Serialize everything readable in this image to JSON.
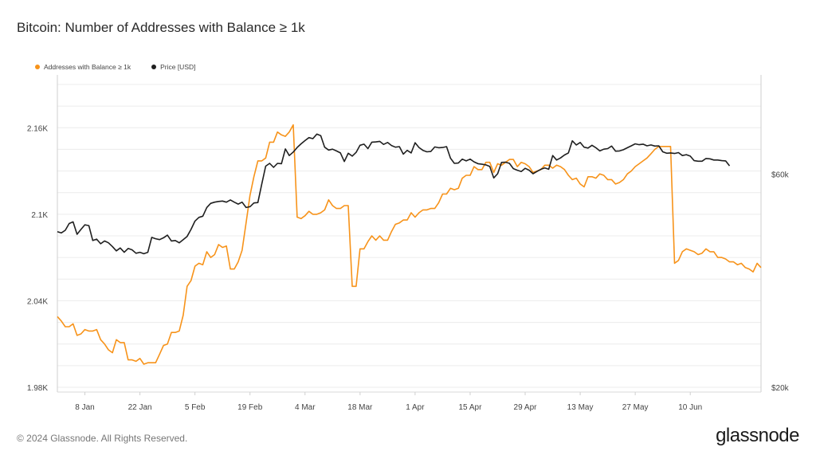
{
  "header": {
    "title": "Bitcoin: Number of Addresses with Balance ≥ 1k"
  },
  "legend": {
    "items": [
      {
        "label": "Addresses with Balance ≥ 1k",
        "color": "#f7931a"
      },
      {
        "label": "Price [USD]",
        "color": "#1f1f1f"
      }
    ]
  },
  "footer": {
    "copyright": "© 2024 Glassnode. All Rights Reserved.",
    "brand": "glassnode"
  },
  "chart_data": {
    "type": "line",
    "title": "Bitcoin: Number of Addresses with Balance ≥ 1k",
    "x_start": "2024-01-01",
    "x_tick_labels": [
      "8 Jan",
      "22 Jan",
      "5 Feb",
      "19 Feb",
      "4 Mar",
      "18 Mar",
      "1 Apr",
      "15 Apr",
      "29 Apr",
      "13 May",
      "27 May",
      "10 Jun"
    ],
    "y_left": {
      "ticks": [
        1980,
        2040,
        2100,
        2160
      ],
      "tick_labels": [
        "1.98K",
        "2.04K",
        "2.1K",
        "2.16K"
      ],
      "ylim": [
        1980,
        2190
      ]
    },
    "y_right": {
      "scale": "log",
      "ticks": [
        20000,
        60000
      ],
      "tick_labels": [
        "$20k",
        "$60k"
      ],
      "ylim": [
        20000,
        100000
      ]
    },
    "grid": true,
    "legend_position": "top-left",
    "series": [
      {
        "name": "Addresses with Balance ≥ 1k",
        "axis": "left",
        "color": "#f7931a",
        "values": [
          2029,
          2026,
          2022,
          2022,
          2024,
          2016,
          2017,
          2020,
          2019,
          2019,
          2020,
          2013,
          2010,
          2006,
          2004,
          2013,
          2011,
          2011,
          1999,
          1999,
          1998,
          2000,
          1996,
          1997,
          1997,
          1997,
          2003,
          2009,
          2010,
          2018,
          2018,
          2019,
          2030,
          2050,
          2054,
          2064,
          2066,
          2065,
          2074,
          2070,
          2072,
          2079,
          2077,
          2078,
          2062,
          2062,
          2067,
          2075,
          2094,
          2113,
          2126,
          2137,
          2137,
          2139,
          2150,
          2150,
          2157,
          2155,
          2154,
          2157,
          2162,
          2098,
          2097,
          2099,
          2102,
          2100,
          2100,
          2101,
          2103,
          2110,
          2106,
          2104,
          2104,
          2106,
          2106,
          2050,
          2050,
          2076,
          2076,
          2081,
          2085,
          2082,
          2085,
          2082,
          2082,
          2088,
          2093,
          2094,
          2096,
          2096,
          2101,
          2098,
          2101,
          2103,
          2103,
          2104,
          2104,
          2108,
          2114,
          2114,
          2118,
          2117,
          2118,
          2125,
          2127,
          2127,
          2133,
          2131,
          2131,
          2136,
          2136,
          2129,
          2135,
          2134,
          2136,
          2138,
          2138,
          2133,
          2136,
          2135,
          2133,
          2129,
          2130,
          2131,
          2134,
          2134,
          2132,
          2134,
          2133,
          2131,
          2127,
          2124,
          2125,
          2121,
          2119,
          2126,
          2126,
          2125,
          2128,
          2127,
          2124,
          2124,
          2121,
          2122,
          2124,
          2128,
          2130,
          2133,
          2135,
          2137,
          2139,
          2142,
          2145,
          2147,
          2147,
          2147,
          2147,
          2066,
          2068,
          2074,
          2076,
          2075,
          2074,
          2072,
          2073,
          2076,
          2074,
          2074,
          2070,
          2070,
          2069,
          2067,
          2067,
          2065,
          2066,
          2063,
          2062,
          2060,
          2066,
          2063
        ]
      },
      {
        "name": "Price [USD]",
        "axis": "right",
        "color": "#1f1f1f",
        "values": [
          44600,
          44300,
          44900,
          46500,
          46900,
          44000,
          45100,
          46200,
          46000,
          42600,
          42900,
          41900,
          42500,
          42100,
          41300,
          40400,
          41000,
          40100,
          40900,
          40600,
          39900,
          40100,
          39800,
          40100,
          43300,
          43000,
          42800,
          43200,
          43800,
          42500,
          42600,
          42100,
          42800,
          43500,
          45100,
          47100,
          48000,
          48300,
          50500,
          51600,
          51900,
          52100,
          52200,
          51900,
          52500,
          51900,
          51400,
          51900,
          50500,
          50700,
          51700,
          51800,
          57000,
          62500,
          63400,
          62100,
          63400,
          63300,
          68300,
          66000,
          67200,
          68800,
          70100,
          71300,
          72400,
          72000,
          73700,
          73100,
          68900,
          67900,
          68200,
          67600,
          66900,
          64000,
          66800,
          65800,
          67100,
          69600,
          70000,
          68400,
          70700,
          70800,
          71000,
          69900,
          70600,
          69500,
          68900,
          69100,
          66500,
          67800,
          66900,
          70500,
          68800,
          67800,
          67300,
          67400,
          69000,
          68700,
          68800,
          69100,
          65100,
          63400,
          63500,
          64800,
          64200,
          64800,
          63900,
          63300,
          63100,
          62900,
          62400,
          58800,
          60100,
          63700,
          63800,
          63400,
          61700,
          61200,
          60800,
          61800,
          61200,
          60100,
          60800,
          61500,
          61900,
          61500,
          66000,
          64500,
          65200,
          66200,
          66900,
          71200,
          69700,
          70600,
          68900,
          68600,
          69600,
          68700,
          67600,
          68200,
          68400,
          69300,
          67500,
          67600,
          68000,
          68700,
          69400,
          70100,
          69800,
          70000,
          69400,
          69700,
          69300,
          69400,
          67300,
          66800,
          66900,
          66700,
          67000,
          66000,
          66300,
          65800,
          64300,
          64100,
          64100,
          65000,
          64900,
          64500,
          64500,
          64300,
          64200,
          62600
        ]
      }
    ]
  }
}
